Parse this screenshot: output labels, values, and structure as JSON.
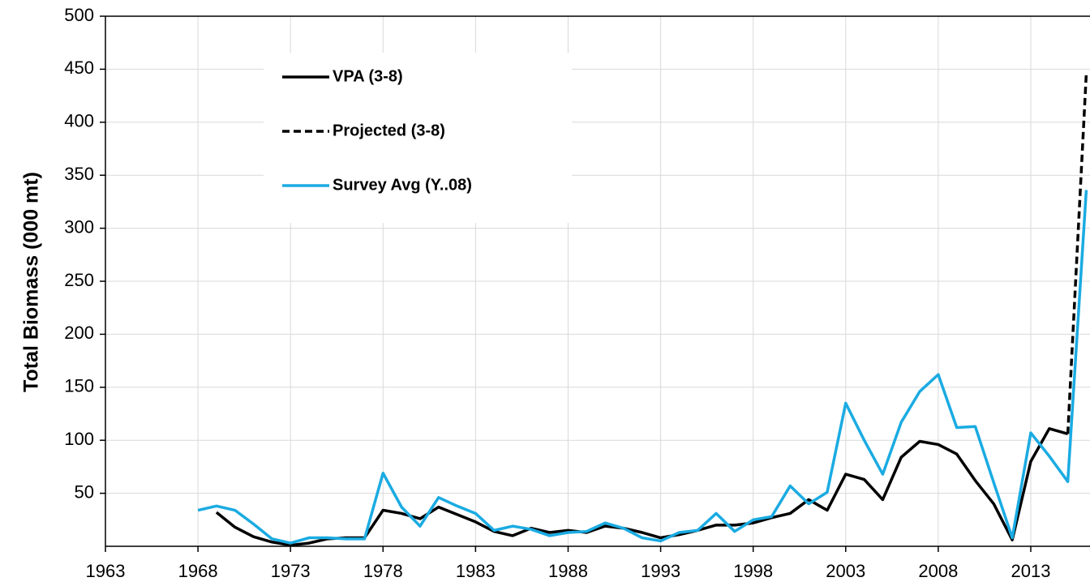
{
  "chart_data": {
    "type": "line",
    "y_label": "Total Biomass  (000 mt)",
    "xlim": [
      1963,
      2016.2
    ],
    "xticks": [
      1963,
      1968,
      1973,
      1978,
      1983,
      1988,
      1993,
      1998,
      2003,
      2008,
      2013
    ],
    "ylim": [
      0,
      500
    ],
    "yticks": [
      50,
      100,
      150,
      200,
      250,
      300,
      350,
      400,
      450,
      500
    ],
    "grid": true,
    "legend": "upper left",
    "series": [
      {
        "name": "VPA (3-8)",
        "color": "#000000",
        "dashed": false,
        "x": [
          1969,
          1970,
          1971,
          1972,
          1973,
          1974,
          1975,
          1976,
          1977,
          1978,
          1979,
          1980,
          1981,
          1982,
          1983,
          1984,
          1985,
          1986,
          1987,
          1988,
          1989,
          1990,
          1991,
          1992,
          1993,
          1994,
          1995,
          1996,
          1997,
          1998,
          1999,
          2000,
          2001,
          2002,
          2003,
          2004,
          2005,
          2006,
          2007,
          2008,
          2009,
          2010,
          2011,
          2012,
          2013,
          2014,
          2015
        ],
        "values": [
          32,
          18,
          9,
          4,
          1,
          3,
          7,
          8,
          8,
          34,
          31,
          26,
          37,
          30,
          23,
          14,
          10,
          17,
          13,
          15,
          13,
          19,
          17,
          13,
          8,
          11,
          15,
          20,
          20,
          22,
          27,
          31,
          44,
          34,
          68,
          63,
          44,
          84,
          99,
          96,
          87,
          62,
          40,
          6,
          80,
          111,
          106
        ]
      },
      {
        "name": "Projected (3-8)",
        "color": "#000000",
        "dashed": true,
        "x": [
          2015,
          2016
        ],
        "values": [
          106,
          446
        ]
      },
      {
        "name": "Survey Avg (Y..08)",
        "color": "#1aabe2",
        "dashed": false,
        "x": [
          1968,
          1969,
          1970,
          1971,
          1972,
          1973,
          1974,
          1975,
          1976,
          1977,
          1978,
          1979,
          1980,
          1981,
          1982,
          1983,
          1984,
          1985,
          1986,
          1987,
          1988,
          1989,
          1990,
          1991,
          1992,
          1993,
          1994,
          1995,
          1996,
          1997,
          1998,
          1999,
          2000,
          2001,
          2002,
          2003,
          2004,
          2005,
          2006,
          2007,
          2008,
          2009,
          2010,
          2011,
          2012,
          2013,
          2014,
          2015,
          2016
        ],
        "values": [
          34,
          38,
          34,
          21,
          7,
          3,
          8,
          8,
          7,
          7,
          69,
          37,
          19,
          46,
          38,
          31,
          15,
          19,
          16,
          10,
          13,
          14,
          22,
          17,
          8,
          5,
          13,
          15,
          31,
          14,
          25,
          28,
          57,
          40,
          51,
          135,
          100,
          68,
          117,
          146,
          162,
          112,
          113,
          60,
          8,
          107,
          85,
          61,
          336
        ]
      }
    ]
  }
}
